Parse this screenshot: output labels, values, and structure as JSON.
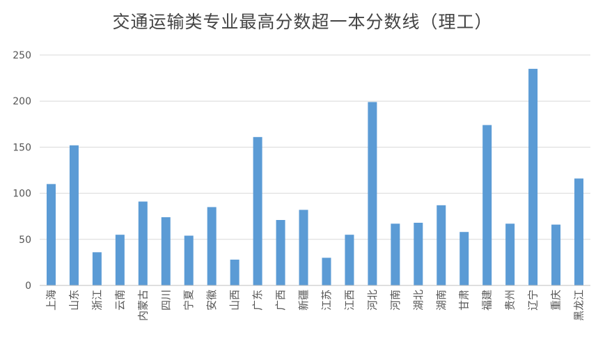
{
  "chart_data": {
    "type": "bar",
    "title": "交通运输类专业最高分数超一本分数线（理工）",
    "xlabel": "",
    "ylabel": "",
    "ylim": [
      0,
      250
    ],
    "yticks": [
      0,
      50,
      100,
      150,
      200,
      250
    ],
    "grid": true,
    "legend": "none",
    "bar_color": "#5B9BD5",
    "grid_color": "#D9D9D9",
    "categories": [
      "上海",
      "山东",
      "浙江",
      "云南",
      "内蒙古",
      "四川",
      "宁夏",
      "安徽",
      "山西",
      "广东",
      "广西",
      "新疆",
      "江苏",
      "江西",
      "河北",
      "河南",
      "湖北",
      "湖南",
      "甘肃",
      "福建",
      "贵州",
      "辽宁",
      "重庆",
      "黑龙江"
    ],
    "values": [
      110,
      152,
      36,
      55,
      91,
      74,
      54,
      85,
      28,
      161,
      71,
      82,
      30,
      55,
      199,
      67,
      68,
      87,
      58,
      174,
      67,
      235,
      66,
      116
    ]
  }
}
